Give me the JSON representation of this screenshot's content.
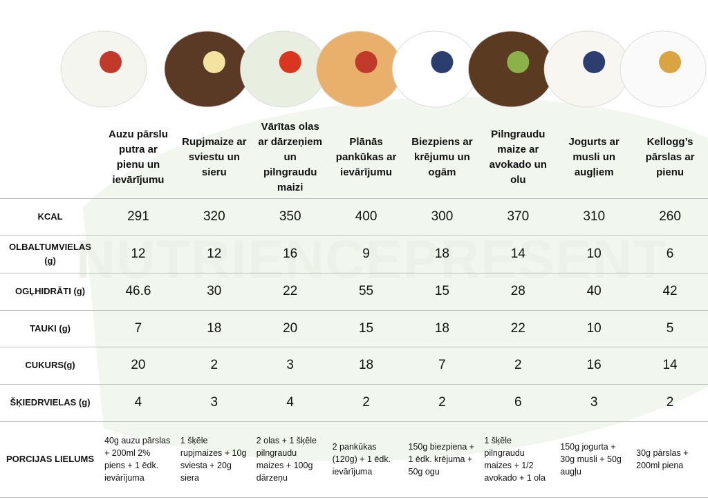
{
  "watermark": "NUTRIENCEPRESENT",
  "table": {
    "columns": [
      "Auzu pārslu putra ar pienu un ievārījumu",
      "Rupjmaize ar sviestu un sieru",
      "Vārītas olas ar dārzeņiem un pilngraudu maizi",
      "Plānās pankūkas ar ievārījumu",
      "Biezpiens ar krējumu un ogām",
      "Pilngraudu maize ar avokado un olu",
      "Jogurts ar musli un augļiem",
      "Kellogg’s pārslas ar pienu"
    ],
    "rows": [
      {
        "label": "KCAL",
        "values": [
          291,
          320,
          350,
          400,
          300,
          370,
          310,
          260
        ]
      },
      {
        "label": "OLBALTUMVIELAS (g)",
        "values": [
          12,
          12,
          16,
          9,
          18,
          14,
          10,
          6
        ]
      },
      {
        "label": "OGĻHIDRĀTI (g)",
        "values": [
          46.6,
          30,
          22,
          55,
          15,
          28,
          40,
          42
        ]
      },
      {
        "label": "TAUKI (g)",
        "values": [
          7,
          18,
          20,
          15,
          18,
          22,
          10,
          5
        ]
      },
      {
        "label": "CUKURS(g)",
        "values": [
          20,
          2,
          3,
          18,
          7,
          2,
          16,
          14
        ]
      },
      {
        "label": "ŠĶIEDRVIELAS (g)",
        "values": [
          4,
          3,
          4,
          2,
          2,
          6,
          3,
          2
        ]
      },
      {
        "label": "PORCIJAS LIELUMS",
        "values": [
          "40g auzu pārslas + 200ml 2% piens + 1 ēdk. ievārījuma",
          "1 šķēle rupjmaizes + 10g sviesta + 20g siera",
          "2 olas + 1 šķēle pilngraudu maizes + 100g dārzeņu",
          "2 pankūkas (120g) + 1 ēdk. ievārījuma",
          "150g biezpiena + 1 ēdk. krējuma + 50g ogu",
          "1 šķēle pilngraudu maizes + 1/2 avokado + 1 ola",
          "150g jogurta + 30g musli + 50g augļu",
          "30g pārslas + 200ml piena"
        ]
      }
    ]
  }
}
